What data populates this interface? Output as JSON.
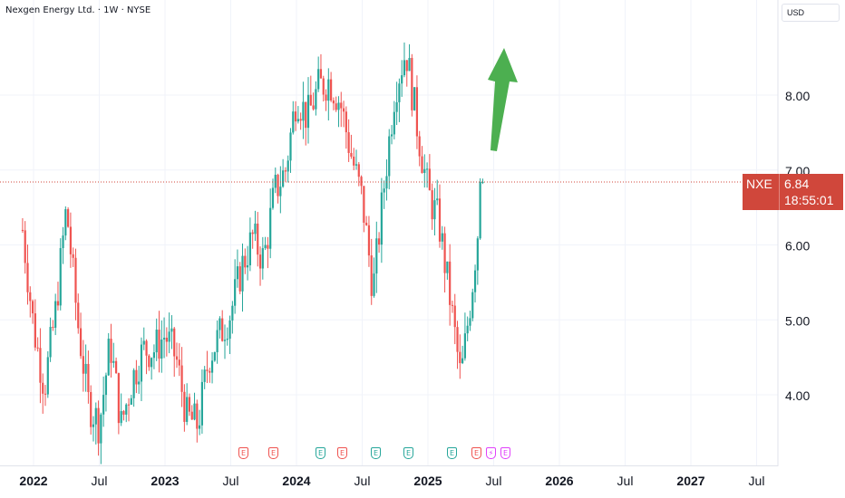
{
  "header": {
    "symbol_title": "Nexgen Energy Ltd. · 1W · NYSE"
  },
  "currency": {
    "label": "USD"
  },
  "price_tag": {
    "ticker": "NXE",
    "price": "6.84",
    "countdown": "18:55:01"
  },
  "colors": {
    "up": "#26a69a",
    "down": "#ef5350",
    "price_tag": "#d0473b",
    "arrow": "#4caf50",
    "earnings_red": "#ef5350",
    "earnings_green": "#26a69a",
    "earnings_purple": "#e040fb"
  },
  "earnings_markers": [
    {
      "label": "E",
      "color": "red"
    },
    {
      "label": "E",
      "color": "red"
    },
    {
      "label": "E",
      "color": "green"
    },
    {
      "label": "E",
      "color": "red"
    },
    {
      "label": "E",
      "color": "green"
    },
    {
      "label": "E",
      "color": "green"
    },
    {
      "label": "E",
      "color": "green"
    },
    {
      "label": "E",
      "color": "red"
    },
    {
      "label": "⚡",
      "color": "purple"
    },
    {
      "label": "E",
      "color": "purple"
    }
  ],
  "chart_data": {
    "type": "candlestick",
    "title": "",
    "y_axis": {
      "ticks": [
        "4.00",
        "5.00",
        "6.00",
        "7.00",
        "8.00"
      ],
      "range": [
        3.1,
        9.3
      ],
      "position": "right"
    },
    "x_axis": {
      "ticks": [
        "2022",
        "Jul",
        "2023",
        "Jul",
        "2024",
        "Jul",
        "2025",
        "Jul",
        "2026",
        "Jul",
        "2027",
        "Jul"
      ]
    },
    "grid": true,
    "last_price": 6.84,
    "annotation": "green arrow pointing up",
    "series": [
      {
        "d": "2021-12",
        "c": 6.2
      },
      {
        "d": "2022-01",
        "c": 4.9
      },
      {
        "d": "2022-02",
        "c": 4.1
      },
      {
        "d": "2022-03",
        "c": 5.1
      },
      {
        "d": "2022-04",
        "c": 6.5
      },
      {
        "d": "2022-05",
        "c": 5.0
      },
      {
        "d": "2022-06",
        "c": 3.9
      },
      {
        "d": "2022-07",
        "c": 3.6
      },
      {
        "d": "2022-08",
        "c": 4.7
      },
      {
        "d": "2022-09",
        "c": 3.6
      },
      {
        "d": "2022-10",
        "c": 4.2
      },
      {
        "d": "2022-11",
        "c": 4.6
      },
      {
        "d": "2022-12",
        "c": 4.6
      },
      {
        "d": "2023-01",
        "c": 4.8
      },
      {
        "d": "2023-02",
        "c": 4.5
      },
      {
        "d": "2023-03",
        "c": 3.7
      },
      {
        "d": "2023-04",
        "c": 3.6
      },
      {
        "d": "2023-05",
        "c": 4.5
      },
      {
        "d": "2023-06",
        "c": 4.8
      },
      {
        "d": "2023-07",
        "c": 5.1
      },
      {
        "d": "2023-08",
        "c": 5.7
      },
      {
        "d": "2023-09",
        "c": 6.1
      },
      {
        "d": "2023-10",
        "c": 5.8
      },
      {
        "d": "2023-11",
        "c": 6.7
      },
      {
        "d": "2023-12",
        "c": 7.0
      },
      {
        "d": "2024-01",
        "c": 8.0
      },
      {
        "d": "2024-02",
        "c": 7.7
      },
      {
        "d": "2024-03",
        "c": 8.1
      },
      {
        "d": "2024-04",
        "c": 8.2
      },
      {
        "d": "2024-05",
        "c": 7.9
      },
      {
        "d": "2024-06",
        "c": 7.2
      },
      {
        "d": "2024-07",
        "c": 6.6
      },
      {
        "d": "2024-08",
        "c": 5.4
      },
      {
        "d": "2024-09",
        "c": 6.8
      },
      {
        "d": "2024-10",
        "c": 8.1
      },
      {
        "d": "2024-11",
        "c": 8.6
      },
      {
        "d": "2024-12",
        "c": 7.6
      },
      {
        "d": "2025-01",
        "c": 6.7
      },
      {
        "d": "2025-02",
        "c": 6.3
      },
      {
        "d": "2025-03",
        "c": 5.3
      },
      {
        "d": "2025-04",
        "c": 4.2
      },
      {
        "d": "2025-05",
        "c": 5.4
      },
      {
        "d": "2025-06",
        "c": 6.84
      }
    ]
  }
}
